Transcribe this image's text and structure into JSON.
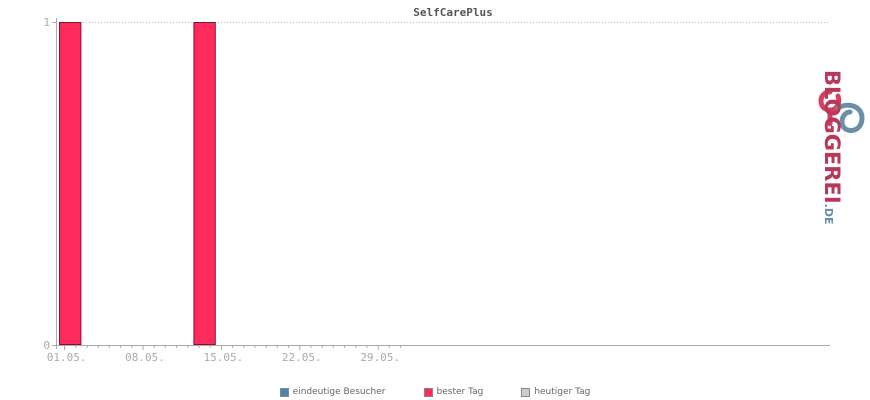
{
  "chart_data": {
    "type": "bar",
    "title": "SelfCarePlus",
    "x_tick_labels": [
      "01.05.",
      "08.05.",
      "15.05.",
      "22.05.",
      "29.05."
    ],
    "x_tick_days": [
      1,
      8,
      15,
      22,
      29
    ],
    "xlim": [
      0,
      31
    ],
    "ylim": [
      0,
      1
    ],
    "y_ticks": [
      0,
      1
    ],
    "grid": true,
    "series": [
      {
        "name": "eindeutige Besucher",
        "color": "#4a86a8",
        "points": []
      },
      {
        "name": "bester Tag",
        "color": "#ff2a5c",
        "points": [
          {
            "day": 1,
            "value": 1
          },
          {
            "day": 13,
            "value": 1
          }
        ]
      },
      {
        "name": "heutiger Tag",
        "color": "#cccccc",
        "points": []
      }
    ],
    "legend_position": "bottom-center"
  },
  "logo": {
    "text": "BLOGGEREI",
    "suffix": ".DE"
  }
}
